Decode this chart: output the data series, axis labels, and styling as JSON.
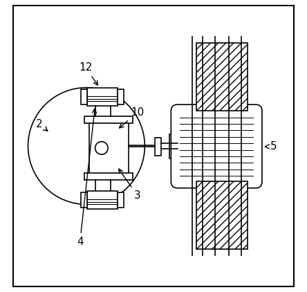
{
  "bg_color": "#ffffff",
  "line_color": "#000000",
  "line_width": 1.2,
  "label_fontsize": 11,
  "fig_width": 4.44,
  "fig_height": 4.22
}
